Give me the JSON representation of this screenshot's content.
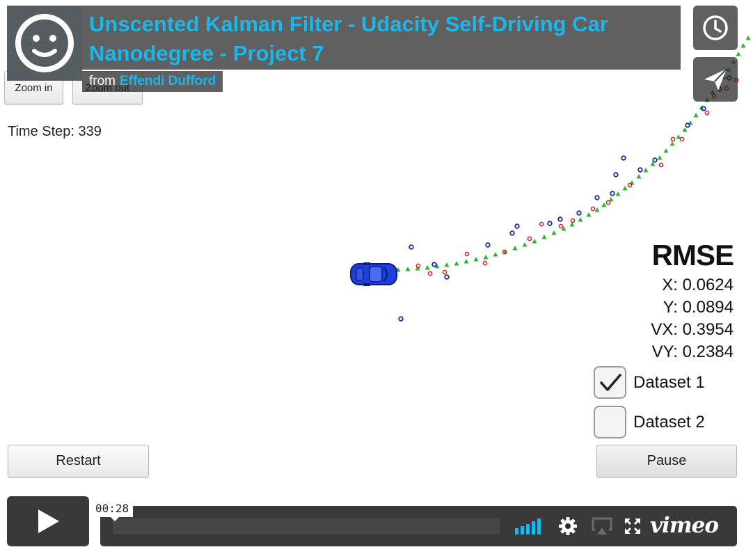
{
  "video": {
    "title": "Unscented Kalman Filter - Udacity Self-Driving Car Nanodegree - Project 7",
    "from_label": "from",
    "author": "Effendi Dufford",
    "timecode": "00:28",
    "brand": "vimeo",
    "accent_color": "#1ab7ea"
  },
  "simulator": {
    "zoom_in_label": "Zoom in",
    "zoom_out_label": "Zoom out",
    "time_step_label": "Time Step: 339",
    "rmse": {
      "title": "RMSE",
      "x": "X: 0.0624",
      "y": "Y: 0.0894",
      "vx": "VX: 0.3954",
      "vy": "VY: 0.2384"
    },
    "datasets": [
      {
        "label": "Dataset 1",
        "checked": true
      },
      {
        "label": "Dataset 2",
        "checked": false
      }
    ],
    "restart_label": "Restart",
    "pause_label": "Pause",
    "colors": {
      "estimate": "#2db52d",
      "lidar": "#cc2222",
      "radar": "#1a2ba8",
      "car": "#1e3fd8"
    }
  },
  "icons": {
    "avatar": "smiley-face-icon",
    "watch_later": "clock-icon",
    "share": "paper-plane-icon",
    "play": "play-icon",
    "volume": "volume-bars-icon",
    "settings": "gear-icon",
    "airplay": "airplay-icon",
    "fullscreen": "fullscreen-icon"
  }
}
